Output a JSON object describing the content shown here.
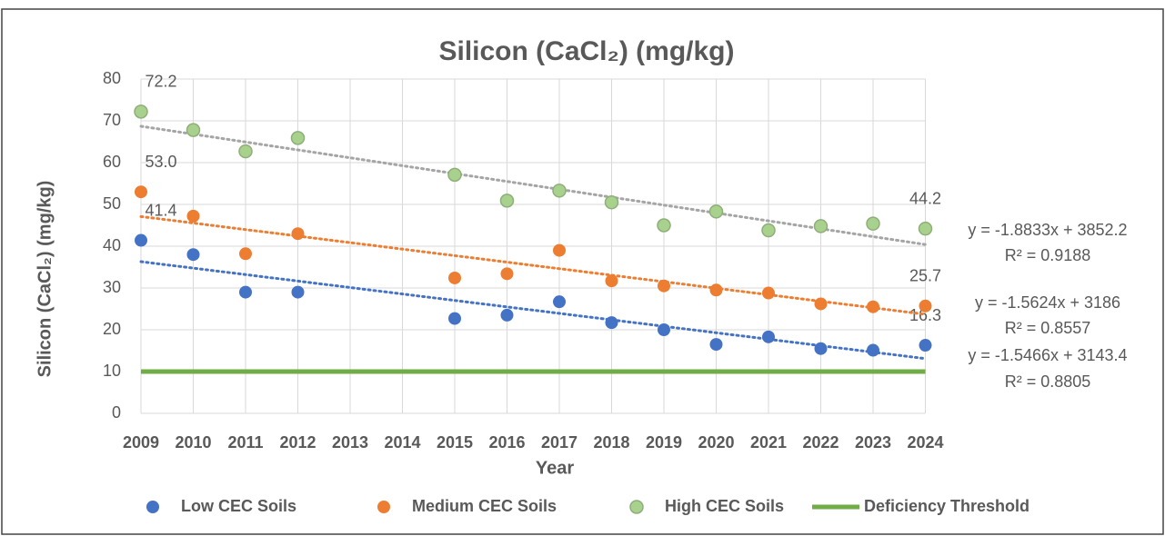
{
  "chart_data": {
    "type": "scatter",
    "title": "Silicon (CaCl₂) (mg/kg)",
    "x_label": "Year",
    "y_label": "Silicon (CaCl₂) (mg/kg)",
    "categories": [
      "2009",
      "2010",
      "2011",
      "2012",
      "2013",
      "2014",
      "2015",
      "2016",
      "2017",
      "2018",
      "2019",
      "2020",
      "2021",
      "2022",
      "2023",
      "2024"
    ],
    "ylim": [
      0,
      80
    ],
    "yticks": [
      0,
      10,
      20,
      30,
      40,
      50,
      60,
      70,
      80
    ],
    "grid": true,
    "legend": "bottom",
    "series": [
      {
        "name": "Low CEC Soils",
        "color": "#4472c4",
        "values": [
          41.4,
          38,
          29,
          29,
          null,
          null,
          22.7,
          23.5,
          26.7,
          21.7,
          20,
          16.5,
          18.3,
          15.5,
          15.1,
          16.3
        ],
        "value_labels": [
          "41.4",
          null,
          null,
          null,
          null,
          null,
          null,
          null,
          null,
          null,
          null,
          null,
          null,
          null,
          null,
          "16.3"
        ],
        "trendline": {
          "equation": "y = -1.5466x + 3143.4",
          "r2": "R² = 0.8805",
          "values": [
            36.3,
            13.1
          ]
        }
      },
      {
        "name": "Medium CEC Soils",
        "color": "#ed7d31",
        "values": [
          53.0,
          47.2,
          38.2,
          43,
          null,
          null,
          32.4,
          33.4,
          39,
          31.7,
          30.5,
          29.5,
          28.8,
          26.2,
          25.5,
          25.7
        ],
        "value_labels": [
          "53.0",
          null,
          null,
          null,
          null,
          null,
          null,
          null,
          null,
          null,
          null,
          null,
          null,
          null,
          null,
          "25.7"
        ],
        "trendline": {
          "equation": "y = -1.5624x + 3186",
          "r2": "R² = 0.8557",
          "values": [
            47.1,
            23.7
          ]
        }
      },
      {
        "name": "High CEC Soils",
        "color": "#a9d18e",
        "values": [
          72.2,
          67.8,
          62.7,
          65.9,
          null,
          null,
          57.1,
          50.9,
          53.3,
          50.5,
          45,
          48.3,
          43.8,
          44.8,
          45.4,
          44.2
        ],
        "value_labels": [
          "72.2",
          null,
          null,
          null,
          null,
          null,
          null,
          null,
          null,
          null,
          null,
          null,
          null,
          null,
          null,
          "44.2"
        ],
        "trendline": {
          "equation": "y = -1.8833x + 3852.2",
          "r2": "R² = 0.9188",
          "values": [
            68.7,
            40.4
          ]
        }
      },
      {
        "name": "Deficiency Threshold",
        "color": "#70ad47",
        "type": "line",
        "values": [
          10,
          10,
          10,
          10,
          10,
          10,
          10,
          10,
          10,
          10,
          10,
          10,
          10,
          10,
          10,
          10
        ]
      }
    ]
  }
}
